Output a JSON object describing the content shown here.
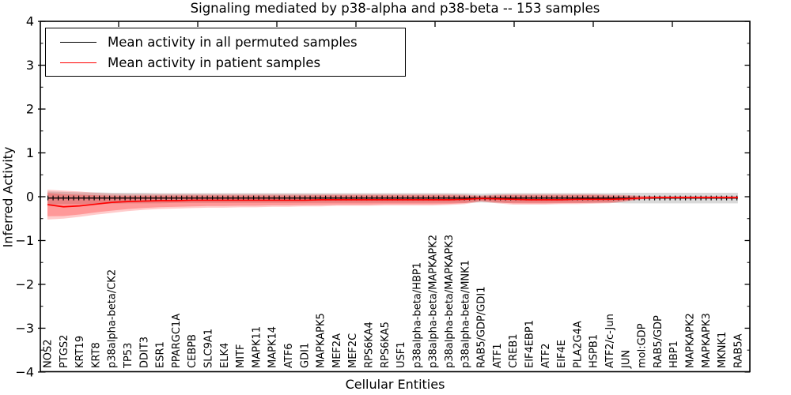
{
  "chart_data": {
    "type": "line",
    "title": "Signaling mediated by p38-alpha and p38-beta -- 153 samples",
    "xlabel": "Cellular Entities",
    "ylabel": "Inferred Activity",
    "ylim": [
      -4,
      4
    ],
    "y_major_ticks": [
      -4,
      -3,
      -2,
      -1,
      0,
      1,
      2,
      3,
      4
    ],
    "y_minor_step": 0.5,
    "grid": "off",
    "legend_position": "upper-left",
    "colors": {
      "permuted_line": "#000000",
      "patient_line": "#ff0000",
      "patient_band": "#ff0000",
      "permuted_band": "#777777",
      "background": "#ffffff"
    },
    "categories": [
      "NOS2",
      "PTGS2",
      "KRT19",
      "KRT8",
      "p38alpha-beta/CK2",
      "TP53",
      "DDIT3",
      "ESR1",
      "PPARGC1A",
      "CEBPB",
      "SLC9A1",
      "ELK4",
      "MITF",
      "MAPK11",
      "MAPK14",
      "ATF6",
      "GDI1",
      "MAPKAPK5",
      "MEF2A",
      "MEF2C",
      "RPS6KA4",
      "RPS6KA5",
      "USF1",
      "p38alpha-beta/HBP1",
      "p38alpha-beta/MAPKAPK2",
      "p38alpha-beta/MAPKAPK3",
      "p38alpha-beta/MNK1",
      "RAB5/GDP/GDI1",
      "ATF1",
      "CREB1",
      "EIF4EBP1",
      "ATF2",
      "EIF4E",
      "PLA2G4A",
      "HSPB1",
      "ATF2/c-Jun",
      "JUN",
      "mol:GDP",
      "RAB5/GDP",
      "HBP1",
      "MAPKAPK2",
      "MAPKAPK3",
      "MKNK1",
      "RAB5A"
    ],
    "series": [
      {
        "name": "Mean activity in all permuted samples",
        "color": "#000000",
        "values": [
          -0.03,
          -0.03,
          -0.03,
          -0.03,
          -0.03,
          -0.03,
          -0.03,
          -0.03,
          -0.03,
          -0.03,
          -0.03,
          -0.03,
          -0.03,
          -0.03,
          -0.03,
          -0.03,
          -0.03,
          -0.03,
          -0.03,
          -0.03,
          -0.03,
          -0.03,
          -0.03,
          -0.03,
          -0.03,
          -0.03,
          -0.03,
          -0.03,
          -0.03,
          -0.03,
          -0.03,
          -0.03,
          -0.03,
          -0.03,
          -0.03,
          -0.03,
          -0.03,
          -0.03,
          -0.03,
          -0.03,
          -0.03,
          -0.03,
          -0.03,
          -0.03
        ],
        "band_upper": [
          0.12,
          0.11,
          0.1,
          0.1,
          0.09,
          0.09,
          0.09,
          0.08,
          0.08,
          0.08,
          0.08,
          0.08,
          0.08,
          0.08,
          0.08,
          0.08,
          0.08,
          0.08,
          0.08,
          0.08,
          0.08,
          0.08,
          0.08,
          0.08,
          0.08,
          0.08,
          0.08,
          0.07,
          0.08,
          0.08,
          0.08,
          0.08,
          0.08,
          0.08,
          0.08,
          0.08,
          0.09,
          0.09,
          0.09,
          0.09,
          0.09,
          0.09,
          0.09,
          0.09
        ],
        "band_lower": [
          -0.18,
          -0.17,
          -0.17,
          -0.16,
          -0.16,
          -0.15,
          -0.15,
          -0.15,
          -0.14,
          -0.14,
          -0.14,
          -0.14,
          -0.14,
          -0.14,
          -0.14,
          -0.14,
          -0.14,
          -0.14,
          -0.14,
          -0.14,
          -0.14,
          -0.14,
          -0.14,
          -0.14,
          -0.14,
          -0.14,
          -0.14,
          -0.13,
          -0.14,
          -0.14,
          -0.14,
          -0.14,
          -0.14,
          -0.14,
          -0.14,
          -0.14,
          -0.15,
          -0.15,
          -0.15,
          -0.15,
          -0.15,
          -0.15,
          -0.15,
          -0.15
        ]
      },
      {
        "name": "Mean activity in patient samples",
        "color": "#ff0000",
        "values": [
          -0.18,
          -0.23,
          -0.21,
          -0.17,
          -0.13,
          -0.11,
          -0.1,
          -0.09,
          -0.09,
          -0.08,
          -0.08,
          -0.08,
          -0.08,
          -0.08,
          -0.08,
          -0.08,
          -0.08,
          -0.07,
          -0.07,
          -0.07,
          -0.07,
          -0.07,
          -0.07,
          -0.07,
          -0.07,
          -0.07,
          -0.06,
          -0.04,
          -0.05,
          -0.06,
          -0.07,
          -0.07,
          -0.07,
          -0.06,
          -0.06,
          -0.06,
          -0.05,
          -0.03,
          -0.02,
          -0.02,
          -0.02,
          -0.02,
          -0.02,
          -0.02
        ],
        "band_upper": [
          0.16,
          0.14,
          0.12,
          0.09,
          0.07,
          0.06,
          0.06,
          0.06,
          0.06,
          0.06,
          0.06,
          0.06,
          0.06,
          0.06,
          0.06,
          0.06,
          0.06,
          0.06,
          0.06,
          0.06,
          0.06,
          0.06,
          0.06,
          0.06,
          0.06,
          0.06,
          0.05,
          0.03,
          0.05,
          0.06,
          0.06,
          0.06,
          0.06,
          0.06,
          0.06,
          0.05,
          0.04,
          0.02,
          0.01,
          0.01,
          0.01,
          0.01,
          0.01,
          0.01
        ],
        "band_lower": [
          -0.52,
          -0.5,
          -0.46,
          -0.41,
          -0.37,
          -0.33,
          -0.3,
          -0.28,
          -0.27,
          -0.26,
          -0.25,
          -0.25,
          -0.24,
          -0.24,
          -0.23,
          -0.23,
          -0.22,
          -0.22,
          -0.21,
          -0.21,
          -0.21,
          -0.2,
          -0.2,
          -0.2,
          -0.2,
          -0.19,
          -0.17,
          -0.11,
          -0.15,
          -0.18,
          -0.18,
          -0.18,
          -0.17,
          -0.17,
          -0.16,
          -0.15,
          -0.11,
          -0.06,
          -0.05,
          -0.05,
          -0.05,
          -0.05,
          -0.05,
          -0.05
        ]
      }
    ]
  }
}
